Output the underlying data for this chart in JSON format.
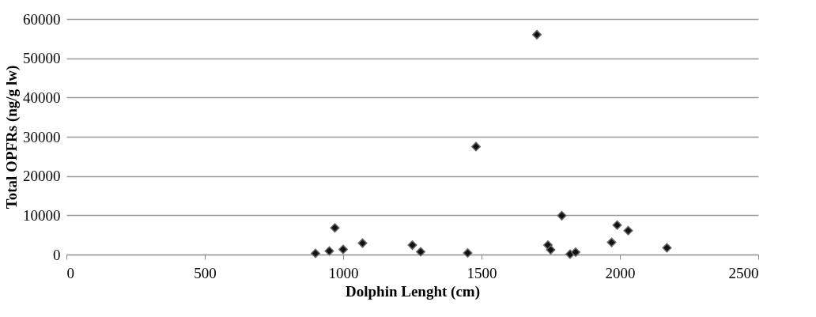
{
  "chart_data": {
    "type": "scatter",
    "xlabel": "Dolphin Lenght (cm)",
    "ylabel": "Total OPFRs (ng/g lw)",
    "x": [
      900,
      950,
      970,
      1000,
      1070,
      1250,
      1280,
      1450,
      1480,
      1700,
      1740,
      1750,
      1790,
      1820,
      1840,
      1970,
      1990,
      2030,
      2170
    ],
    "series": [
      {
        "color": "#111111",
        "values": [
          300,
          900,
          6800,
          1300,
          2900,
          2400,
          700,
          400,
          27500,
          56000,
          2400,
          1200,
          9900,
          100,
          600,
          3100,
          7500,
          6100,
          1700
        ]
      }
    ],
    "xlim": [
      0,
      2500
    ],
    "xticks": [
      0,
      500,
      1000,
      1500,
      2000,
      2500
    ],
    "ylim": [
      0,
      60000
    ],
    "yticks": [
      0,
      10000,
      20000,
      30000,
      40000,
      50000,
      60000
    ],
    "grid": "y",
    "marker": "diamond"
  }
}
